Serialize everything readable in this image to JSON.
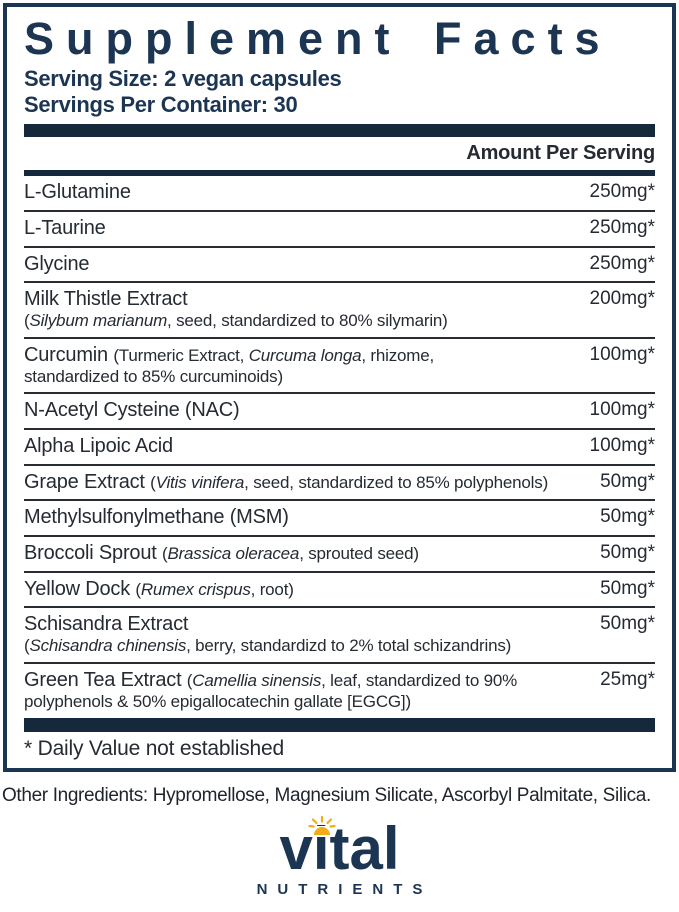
{
  "colors": {
    "navy": "#1c3553",
    "bar": "#16293c",
    "text": "#262b33",
    "gold": "#f0ad17"
  },
  "panel": {
    "title": "Supplement Facts",
    "serving_size": "Serving Size: 2 vegan capsules",
    "servings_per_container": "Servings Per Container: 30",
    "amount_header": "Amount Per Serving",
    "footnote": "* Daily Value not established",
    "rows": [
      {
        "amount": "250mg*",
        "lines": [
          [
            {
              "t": "L-Glutamine",
              "s": "main"
            }
          ]
        ]
      },
      {
        "amount": "250mg*",
        "lines": [
          [
            {
              "t": "L-Taurine",
              "s": "main"
            }
          ]
        ]
      },
      {
        "amount": "250mg*",
        "lines": [
          [
            {
              "t": "Glycine",
              "s": "main"
            }
          ]
        ]
      },
      {
        "amount": "200mg*",
        "lines": [
          [
            {
              "t": "Milk Thistle Extract",
              "s": "main"
            }
          ],
          [
            {
              "t": "(",
              "s": "detail"
            },
            {
              "t": "Silybum marianum",
              "s": "italic"
            },
            {
              "t": ", seed, standardized to 80% silymarin)",
              "s": "detail"
            }
          ]
        ]
      },
      {
        "amount": "100mg*",
        "lines": [
          [
            {
              "t": "Curcumin ",
              "s": "main"
            },
            {
              "t": "(Turmeric Extract, ",
              "s": "detail"
            },
            {
              "t": "Curcuma longa",
              "s": "italic"
            },
            {
              "t": ", rhizome,",
              "s": "detail"
            }
          ],
          [
            {
              "t": "standardized to 85% curcuminoids)",
              "s": "detail"
            }
          ]
        ]
      },
      {
        "amount": "100mg*",
        "lines": [
          [
            {
              "t": "N-Acetyl Cysteine (NAC)",
              "s": "main"
            }
          ]
        ]
      },
      {
        "amount": "100mg*",
        "lines": [
          [
            {
              "t": "Alpha Lipoic Acid",
              "s": "main"
            }
          ]
        ]
      },
      {
        "amount": "50mg*",
        "lines": [
          [
            {
              "t": "Grape Extract ",
              "s": "main"
            },
            {
              "t": "(",
              "s": "detail"
            },
            {
              "t": "Vitis vinifera",
              "s": "italic"
            },
            {
              "t": ", seed, standardized to 85% polyphenols)",
              "s": "detail"
            }
          ]
        ]
      },
      {
        "amount": "50mg*",
        "lines": [
          [
            {
              "t": "Methylsulfonylmethane (MSM)",
              "s": "main"
            }
          ]
        ]
      },
      {
        "amount": "50mg*",
        "lines": [
          [
            {
              "t": "Broccoli Sprout ",
              "s": "main"
            },
            {
              "t": "(",
              "s": "detail"
            },
            {
              "t": "Brassica oleracea",
              "s": "italic"
            },
            {
              "t": ", sprouted seed)",
              "s": "detail"
            }
          ]
        ]
      },
      {
        "amount": "50mg*",
        "lines": [
          [
            {
              "t": "Yellow Dock ",
              "s": "main"
            },
            {
              "t": "(",
              "s": "detail"
            },
            {
              "t": "Rumex crispus",
              "s": "italic"
            },
            {
              "t": ", root)",
              "s": "detail"
            }
          ]
        ]
      },
      {
        "amount": "50mg*",
        "lines": [
          [
            {
              "t": "Schisandra Extract",
              "s": "main"
            }
          ],
          [
            {
              "t": "(",
              "s": "detail"
            },
            {
              "t": "Schisandra chinensis",
              "s": "italic"
            },
            {
              "t": ", berry, standardizd to 2% total schizandrins)",
              "s": "detail"
            }
          ]
        ]
      },
      {
        "amount": "25mg*",
        "lines": [
          [
            {
              "t": "Green Tea Extract ",
              "s": "main"
            },
            {
              "t": "(",
              "s": "detail"
            },
            {
              "t": "Camellia sinensis",
              "s": "italic"
            },
            {
              "t": ", leaf, standardized to 90%",
              "s": "detail"
            }
          ],
          [
            {
              "t": "polyphenols & 50% epigallocatechin gallate [EGCG])",
              "s": "detail"
            }
          ]
        ]
      }
    ]
  },
  "other_ingredients": "Other Ingredients: Hypromellose, Magnesium Silicate, Ascorbyl Palmitate, Silica.",
  "brand": {
    "name": "vital",
    "subtitle": "NUTRIENTS",
    "icon": "sun-icon"
  }
}
